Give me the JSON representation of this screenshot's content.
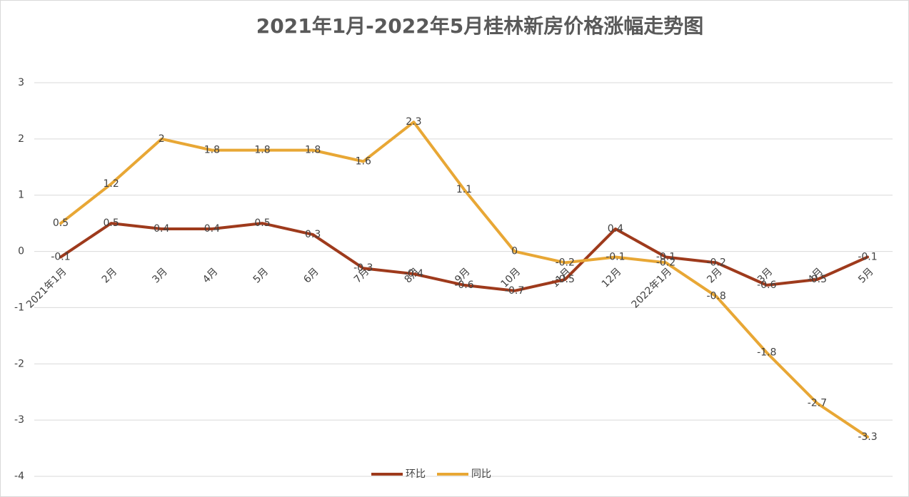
{
  "chart_data": {
    "type": "line",
    "title": "2021年1月-2022年5月桂林新房价格涨幅走势图",
    "categories": [
      "2021年1月",
      "2月",
      "3月",
      "4月",
      "5月",
      "6月",
      "7月",
      "8月",
      "9月",
      "10月",
      "11月",
      "12月",
      "2022年1月",
      "2月",
      "3月",
      "4月",
      "5月"
    ],
    "series": [
      {
        "name": "环比",
        "color": "#9e3a1c",
        "values": [
          -0.1,
          0.5,
          0.4,
          0.4,
          0.5,
          0.3,
          -0.3,
          -0.4,
          -0.6,
          -0.7,
          -0.5,
          0.4,
          -0.1,
          -0.2,
          -0.6,
          -0.5,
          -0.1
        ]
      },
      {
        "name": "同比",
        "color": "#e8a735",
        "values": [
          0.5,
          1.2,
          2,
          1.8,
          1.8,
          1.8,
          1.6,
          2.3,
          1.1,
          0,
          -0.2,
          -0.1,
          -0.2,
          -0.8,
          -1.8,
          -2.7,
          -3.3
        ]
      }
    ],
    "ylim": [
      -4,
      3
    ],
    "yticks": [
      -4,
      -3,
      -2,
      -1,
      0,
      1,
      2,
      3
    ],
    "grid": true,
    "legend": "bottom"
  }
}
